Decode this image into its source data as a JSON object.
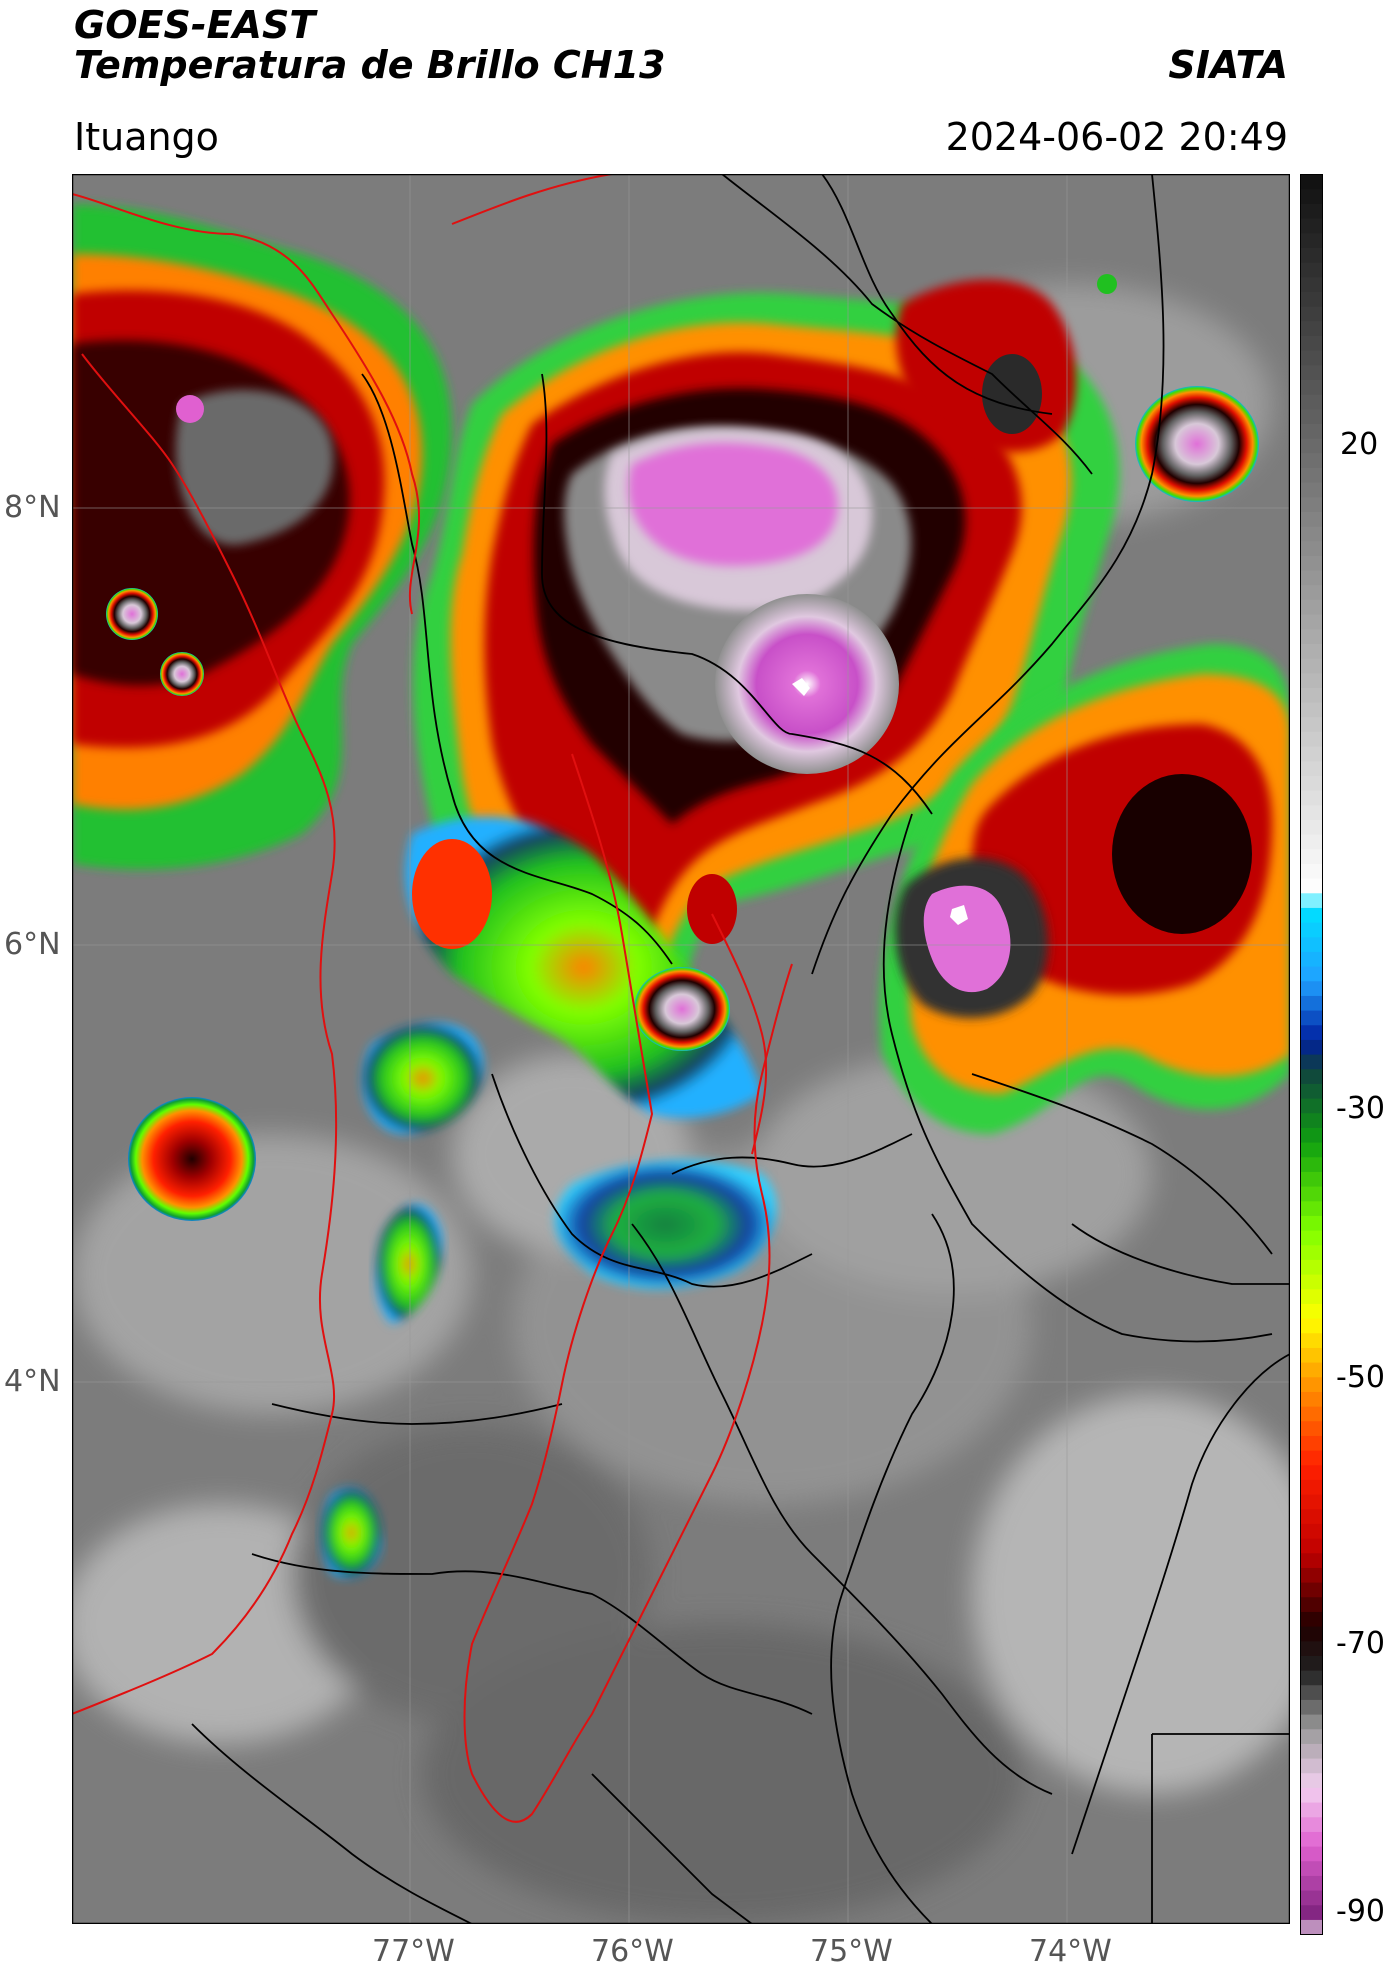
{
  "header": {
    "satellite": "GOES-EAST",
    "product": "Temperatura de Brillo CH13",
    "agency": "SIATA",
    "region": "Ituango",
    "datetime": "2024-06-02 20:49"
  },
  "map": {
    "lat_labels": [
      "8°N",
      "6°N",
      "4°N"
    ],
    "lon_labels": [
      "77°W",
      "76°W",
      "75°W",
      "74°W"
    ],
    "lat_range": [
      2.3,
      9.5
    ],
    "lon_range": [
      -78.5,
      -73.0
    ],
    "borders_color": "#000000",
    "department_border_color": "#e01010"
  },
  "colorbar": {
    "ticks": [
      "20",
      "-30",
      "-50",
      "-70",
      "-90"
    ],
    "range": [
      -90,
      30
    ],
    "stops": [
      {
        "v": -90,
        "color": "#ffffff"
      },
      {
        "v": -89,
        "color": "#7a1f7a"
      },
      {
        "v": -84,
        "color": "#e060d0"
      },
      {
        "v": -80,
        "color": "#f2d0f0"
      },
      {
        "v": -76,
        "color": "#9a9a9a"
      },
      {
        "v": -72,
        "color": "#202020"
      },
      {
        "v": -69,
        "color": "#200000"
      },
      {
        "v": -64,
        "color": "#c00000"
      },
      {
        "v": -58,
        "color": "#ff2000"
      },
      {
        "v": -52,
        "color": "#ffa000"
      },
      {
        "v": -48,
        "color": "#ffff00"
      },
      {
        "v": -42,
        "color": "#80ff00"
      },
      {
        "v": -36,
        "color": "#10a010"
      },
      {
        "v": -31,
        "color": "#104040"
      },
      {
        "v": -29,
        "color": "#0020a0"
      },
      {
        "v": -25,
        "color": "#20a0ff"
      },
      {
        "v": -20,
        "color": "#00e0ff"
      },
      {
        "v": -19,
        "color": "#ffffff"
      },
      {
        "v": 30,
        "color": "#101010"
      }
    ]
  }
}
